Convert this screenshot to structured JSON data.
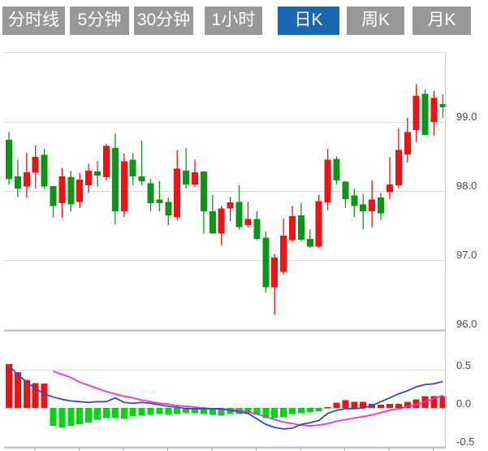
{
  "tabs": {
    "items": [
      {
        "label": "分时线",
        "active": false
      },
      {
        "label": "5分钟",
        "active": false
      },
      {
        "label": "30分钟",
        "active": false
      },
      {
        "label": "1小时",
        "active": false
      },
      {
        "label": "日K",
        "active": true
      },
      {
        "label": "周K",
        "active": false
      },
      {
        "label": "月K",
        "active": false
      }
    ]
  },
  "colors": {
    "candle_up": "#ee1212",
    "candle_down": "#0d9616",
    "hist_up": "#ee1212",
    "hist_down": "#00d514",
    "dif_line": "#2f4cd5",
    "dea_line": "#fb2fd4",
    "grid": "#dcdcdc",
    "axis_heavy": "#b7c4d9",
    "tick": "#8fa0bb",
    "right_border": "#cccccc",
    "label_text": "#4a4a4a",
    "tab_bg": "#989898",
    "tab_active_bg": "#1b67b2",
    "tab_text": "#ffffff"
  },
  "chart_data": [
    {
      "type": "candlestick",
      "title": "",
      "xlabel": "",
      "ylabel": "",
      "y_axis_labels": [
        "99.0",
        "98.0",
        "97.0",
        "96.0"
      ],
      "y_gridline_values": [
        99.0,
        98.0,
        97.0,
        96.0
      ],
      "ylim": [
        95.95,
        100.05
      ],
      "grid": true,
      "candles": [
        {
          "o": 98.74,
          "h": 98.85,
          "l": 98.09,
          "c": 98.17
        },
        {
          "o": 98.21,
          "h": 98.45,
          "l": 97.91,
          "c": 98.03
        },
        {
          "o": 98.06,
          "h": 98.55,
          "l": 97.9,
          "c": 98.27
        },
        {
          "o": 98.26,
          "h": 98.66,
          "l": 98.03,
          "c": 98.49
        },
        {
          "o": 98.52,
          "h": 98.61,
          "l": 98.02,
          "c": 98.06
        },
        {
          "o": 98.07,
          "h": 98.07,
          "l": 97.61,
          "c": 97.78
        },
        {
          "o": 97.82,
          "h": 98.33,
          "l": 97.61,
          "c": 98.21
        },
        {
          "o": 98.2,
          "h": 98.29,
          "l": 97.7,
          "c": 97.8
        },
        {
          "o": 97.84,
          "h": 98.26,
          "l": 97.75,
          "c": 98.16
        },
        {
          "o": 98.08,
          "h": 98.39,
          "l": 97.97,
          "c": 98.29
        },
        {
          "o": 98.28,
          "h": 98.43,
          "l": 98.06,
          "c": 98.22
        },
        {
          "o": 98.2,
          "h": 98.68,
          "l": 98.15,
          "c": 98.65
        },
        {
          "o": 98.62,
          "h": 98.83,
          "l": 97.51,
          "c": 97.7
        },
        {
          "o": 97.7,
          "h": 98.54,
          "l": 97.62,
          "c": 98.43
        },
        {
          "o": 98.45,
          "h": 98.55,
          "l": 98.08,
          "c": 98.21
        },
        {
          "o": 98.21,
          "h": 98.73,
          "l": 98.08,
          "c": 98.14
        },
        {
          "o": 98.11,
          "h": 98.17,
          "l": 97.7,
          "c": 97.82
        },
        {
          "o": 97.87,
          "h": 98.14,
          "l": 97.7,
          "c": 97.82
        },
        {
          "o": 97.84,
          "h": 97.9,
          "l": 97.5,
          "c": 97.64
        },
        {
          "o": 97.62,
          "h": 98.59,
          "l": 97.58,
          "c": 98.32
        },
        {
          "o": 98.29,
          "h": 98.62,
          "l": 98.03,
          "c": 98.09
        },
        {
          "o": 98.09,
          "h": 98.45,
          "l": 98.06,
          "c": 98.27
        },
        {
          "o": 98.28,
          "h": 98.28,
          "l": 97.38,
          "c": 97.7
        },
        {
          "o": 97.7,
          "h": 97.94,
          "l": 97.37,
          "c": 97.38
        },
        {
          "o": 97.38,
          "h": 97.78,
          "l": 97.21,
          "c": 97.74
        },
        {
          "o": 97.74,
          "h": 97.91,
          "l": 97.56,
          "c": 97.83
        },
        {
          "o": 97.84,
          "h": 98.08,
          "l": 97.44,
          "c": 97.47
        },
        {
          "o": 97.5,
          "h": 97.84,
          "l": 97.47,
          "c": 97.59
        },
        {
          "o": 97.59,
          "h": 97.7,
          "l": 97.28,
          "c": 97.3
        },
        {
          "o": 97.32,
          "h": 97.41,
          "l": 96.52,
          "c": 96.6
        },
        {
          "o": 96.6,
          "h": 97.08,
          "l": 96.2,
          "c": 97.03
        },
        {
          "o": 96.82,
          "h": 97.6,
          "l": 96.78,
          "c": 97.35
        },
        {
          "o": 97.28,
          "h": 97.78,
          "l": 97.25,
          "c": 97.63
        },
        {
          "o": 97.64,
          "h": 97.82,
          "l": 97.26,
          "c": 97.29
        },
        {
          "o": 97.3,
          "h": 97.44,
          "l": 97.17,
          "c": 97.19
        },
        {
          "o": 97.19,
          "h": 97.94,
          "l": 97.17,
          "c": 97.85
        },
        {
          "o": 97.83,
          "h": 98.61,
          "l": 97.72,
          "c": 98.45
        },
        {
          "o": 98.46,
          "h": 98.5,
          "l": 98.09,
          "c": 98.15
        },
        {
          "o": 98.13,
          "h": 98.14,
          "l": 97.75,
          "c": 97.88
        },
        {
          "o": 97.93,
          "h": 98.03,
          "l": 97.62,
          "c": 97.78
        },
        {
          "o": 97.8,
          "h": 97.95,
          "l": 97.44,
          "c": 97.7
        },
        {
          "o": 97.7,
          "h": 98.15,
          "l": 97.47,
          "c": 97.87
        },
        {
          "o": 97.9,
          "h": 97.97,
          "l": 97.58,
          "c": 97.67
        },
        {
          "o": 97.98,
          "h": 98.49,
          "l": 97.88,
          "c": 98.09
        },
        {
          "o": 98.08,
          "h": 98.91,
          "l": 98.04,
          "c": 98.59
        },
        {
          "o": 98.53,
          "h": 99.06,
          "l": 98.41,
          "c": 98.85
        },
        {
          "o": 98.88,
          "h": 99.55,
          "l": 98.71,
          "c": 99.38
        },
        {
          "o": 99.41,
          "h": 99.47,
          "l": 98.81,
          "c": 98.81
        },
        {
          "o": 99.0,
          "h": 99.45,
          "l": 98.8,
          "c": 99.35
        },
        {
          "o": 99.26,
          "h": 99.4,
          "l": 99.06,
          "c": 99.21
        }
      ]
    },
    {
      "type": "bar",
      "subtype": "macd-panel",
      "y_axis_labels": [
        "0.5",
        "0.0",
        "-0.5"
      ],
      "y_gridline_values": [
        0.5,
        0.0,
        -0.5
      ],
      "ylim": [
        -0.55,
        0.55
      ],
      "histogram": [
        0.56,
        0.46,
        0.36,
        0.32,
        0.31,
        -0.23,
        -0.25,
        -0.23,
        -0.21,
        -0.19,
        -0.15,
        -0.13,
        -0.13,
        -0.14,
        -0.11,
        -0.1,
        -0.09,
        -0.08,
        -0.09,
        -0.08,
        -0.07,
        -0.07,
        -0.08,
        -0.09,
        -0.1,
        -0.08,
        -0.08,
        -0.07,
        -0.09,
        -0.13,
        -0.13,
        -0.12,
        -0.08,
        -0.07,
        -0.05,
        -0.04,
        0.01,
        0.07,
        0.1,
        0.08,
        0.08,
        0.05,
        0.04,
        0.05,
        0.05,
        0.08,
        0.11,
        0.15,
        0.15,
        0.15
      ],
      "dif": [
        0.54,
        0.43,
        0.33,
        0.25,
        0.18,
        0.14,
        0.11,
        0.09,
        0.08,
        0.07,
        0.08,
        0.08,
        0.13,
        0.07,
        0.06,
        0.07,
        0.06,
        0.04,
        0.02,
        0.01,
        -0.01,
        -0.01,
        -0.01,
        -0.01,
        -0.01,
        -0.03,
        -0.05,
        -0.07,
        -0.14,
        -0.21,
        -0.25,
        -0.27,
        -0.26,
        -0.21,
        -0.19,
        -0.16,
        -0.07,
        -0.03,
        -0.01,
        -0.01,
        0.0,
        0.03,
        0.08,
        0.13,
        0.18,
        0.22,
        0.27,
        0.3,
        0.31,
        0.34
      ],
      "dea_start_index": 5,
      "dea": [
        0.47,
        0.43,
        0.39,
        0.33,
        0.29,
        0.25,
        0.21,
        0.18,
        0.15,
        0.13,
        0.1,
        0.08,
        0.06,
        0.05,
        0.03,
        0.02,
        0.01,
        0.0,
        -0.01,
        -0.02,
        -0.02,
        -0.03,
        -0.05,
        -0.08,
        -0.11,
        -0.15,
        -0.18,
        -0.2,
        -0.22,
        -0.23,
        -0.22,
        -0.2,
        -0.17,
        -0.15,
        -0.13,
        -0.11,
        -0.09,
        -0.06,
        -0.03,
        -0.01,
        0.02,
        0.04,
        0.08,
        0.12,
        0.16
      ]
    }
  ]
}
